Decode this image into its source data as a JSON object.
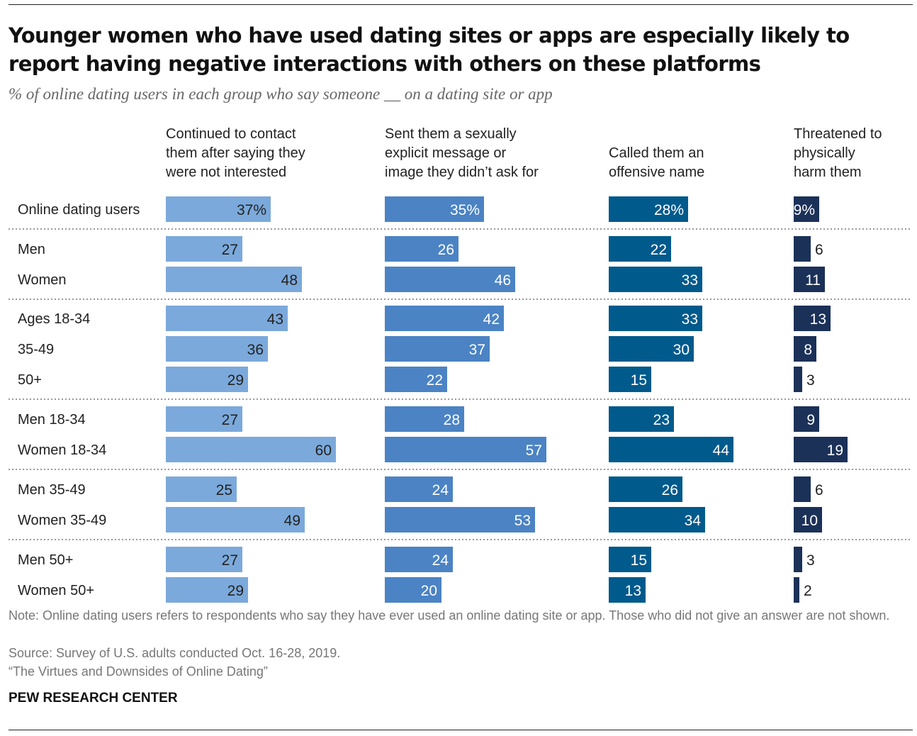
{
  "title": "Younger women who have used dating sites or apps are especially likely to report having negative interactions with others on these platforms",
  "subtitle": "% of online dating users in each group who say someone __ on a dating site or app",
  "chart_data": {
    "type": "bar",
    "orientation": "horizontal",
    "categories": [
      "Online dating users",
      "Men",
      "Women",
      "Ages 18-34",
      "35-49",
      "50+",
      "Men 18-34",
      "Women 18-34",
      "Men 35-49",
      "Women 35-49",
      "Men 50+",
      "Women 50+"
    ],
    "groups": [
      [
        0
      ],
      [
        1,
        2
      ],
      [
        3,
        4,
        5
      ],
      [
        6,
        7
      ],
      [
        8,
        9
      ],
      [
        10,
        11
      ]
    ],
    "series": [
      {
        "name": "Continued to contact them after saying they were not interested",
        "color": "#7ba9db",
        "label_color": "#222222",
        "values": [
          37,
          27,
          48,
          43,
          36,
          29,
          27,
          60,
          25,
          49,
          27,
          29
        ]
      },
      {
        "name": "Sent them a sexually explicit message or image they didn’t ask for",
        "color": "#4b83c4",
        "label_color": "#ffffff",
        "values": [
          35,
          26,
          46,
          42,
          37,
          22,
          28,
          57,
          24,
          53,
          24,
          20
        ]
      },
      {
        "name": "Called them an offensive name",
        "color": "#005a8c",
        "label_color": "#ffffff",
        "values": [
          28,
          22,
          33,
          33,
          30,
          15,
          23,
          44,
          26,
          34,
          15,
          13
        ]
      },
      {
        "name": "Threatened to physically harm them",
        "color": "#1b3158",
        "label_color": "#ffffff",
        "values": [
          9,
          6,
          11,
          13,
          8,
          3,
          9,
          19,
          6,
          10,
          3,
          2
        ]
      }
    ],
    "unit": "%",
    "first_row_shows_percent": true
  },
  "column_headers": [
    [
      "Continued to contact",
      "them after saying they",
      "were not interested"
    ],
    [
      "Sent them a sexually",
      "explicit message or",
      "image they didn’t ask for"
    ],
    [
      "Called them an",
      "offensive name"
    ],
    [
      "Threatened to",
      "physically",
      "harm them"
    ]
  ],
  "footer": {
    "note": "Note: Online dating users refers to respondents who say they have ever used an online dating site or app. Those who did not give an answer are not shown.",
    "source": "Source: Survey of U.S. adults conducted Oct. 16-28, 2019.",
    "report": "“The Virtues and Downsides of Online Dating”",
    "brand": "PEW RESEARCH CENTER"
  }
}
